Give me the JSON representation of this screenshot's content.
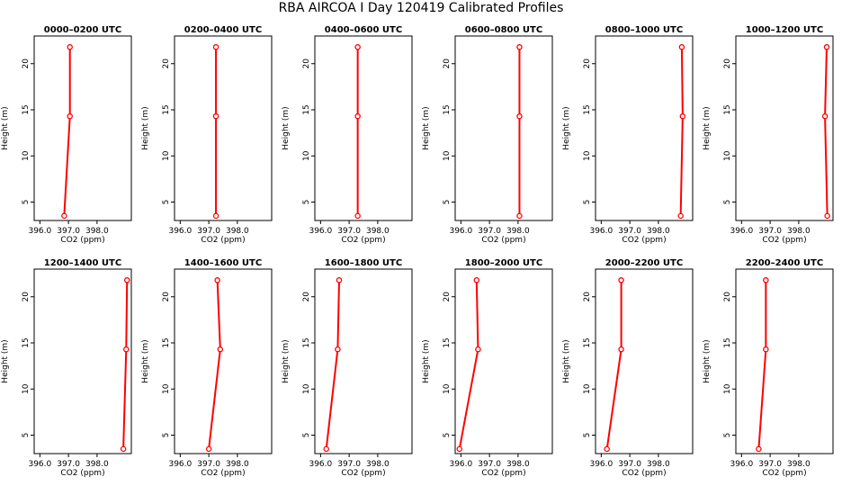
{
  "title": "RBA AIRCOA I  Day 120419  Calibrated Profiles",
  "chart_data": [
    {
      "type": "line",
      "title": "0000–0200 UTC",
      "xlabel": "CO2 (ppm)",
      "ylabel": "Height (m)",
      "xlim": [
        395.8,
        399.2
      ],
      "ylim": [
        3,
        23
      ],
      "xticks": [
        396,
        397,
        398
      ],
      "xtick_labels": [
        "396.0",
        "397.0",
        "398.0"
      ],
      "yticks": [
        5,
        10,
        15,
        20
      ],
      "grid": false,
      "series": [
        {
          "color": "#ff0000",
          "points": [
            {
              "x": 396.85,
              "y": 3.5
            },
            {
              "x": 397.05,
              "y": 14.3
            },
            {
              "x": 397.05,
              "y": 21.8
            }
          ]
        }
      ]
    },
    {
      "type": "line",
      "title": "0200–0400 UTC",
      "xlabel": "CO2 (ppm)",
      "ylabel": "Height (m)",
      "xlim": [
        395.8,
        399.2
      ],
      "ylim": [
        3,
        23
      ],
      "xticks": [
        396,
        397,
        398
      ],
      "xtick_labels": [
        "396.0",
        "397.0",
        "398.0"
      ],
      "yticks": [
        5,
        10,
        15,
        20
      ],
      "grid": false,
      "series": [
        {
          "color": "#ff0000",
          "points": [
            {
              "x": 397.25,
              "y": 3.5
            },
            {
              "x": 397.25,
              "y": 14.3
            },
            {
              "x": 397.25,
              "y": 21.8
            }
          ]
        }
      ]
    },
    {
      "type": "line",
      "title": "0400–0600 UTC",
      "xlabel": "CO2 (ppm)",
      "ylabel": "Height (m)",
      "xlim": [
        395.8,
        399.2
      ],
      "ylim": [
        3,
        23
      ],
      "xticks": [
        396,
        397,
        398
      ],
      "xtick_labels": [
        "396.0",
        "397.0",
        "398.0"
      ],
      "yticks": [
        5,
        10,
        15,
        20
      ],
      "grid": false,
      "series": [
        {
          "color": "#ff0000",
          "points": [
            {
              "x": 397.3,
              "y": 3.5
            },
            {
              "x": 397.3,
              "y": 14.3
            },
            {
              "x": 397.3,
              "y": 21.8
            }
          ]
        }
      ]
    },
    {
      "type": "line",
      "title": "0600–0800 UTC",
      "xlabel": "CO2 (ppm)",
      "ylabel": "Height (m)",
      "xlim": [
        395.8,
        399.2
      ],
      "ylim": [
        3,
        23
      ],
      "xticks": [
        396,
        397,
        398
      ],
      "xtick_labels": [
        "396.0",
        "397.0",
        "398.0"
      ],
      "yticks": [
        5,
        10,
        15,
        20
      ],
      "grid": false,
      "series": [
        {
          "color": "#ff0000",
          "points": [
            {
              "x": 398.05,
              "y": 3.5
            },
            {
              "x": 398.05,
              "y": 14.3
            },
            {
              "x": 398.05,
              "y": 21.8
            }
          ]
        }
      ]
    },
    {
      "type": "line",
      "title": "0800–1000 UTC",
      "xlabel": "CO2 (ppm)",
      "ylabel": "Height (m)",
      "xlim": [
        395.8,
        399.2
      ],
      "ylim": [
        3,
        23
      ],
      "xticks": [
        396,
        397,
        398
      ],
      "xtick_labels": [
        "396.0",
        "397.0",
        "398.0"
      ],
      "yticks": [
        5,
        10,
        15,
        20
      ],
      "grid": false,
      "series": [
        {
          "color": "#ff0000",
          "points": [
            {
              "x": 398.78,
              "y": 3.5
            },
            {
              "x": 398.85,
              "y": 14.3
            },
            {
              "x": 398.82,
              "y": 21.8
            }
          ]
        }
      ]
    },
    {
      "type": "line",
      "title": "1000–1200 UTC",
      "xlabel": "CO2 (ppm)",
      "ylabel": "Height (m)",
      "xlim": [
        395.8,
        399.2
      ],
      "ylim": [
        3,
        23
      ],
      "xticks": [
        396,
        397,
        398
      ],
      "xtick_labels": [
        "396.0",
        "397.0",
        "398.0"
      ],
      "yticks": [
        5,
        10,
        15,
        20
      ],
      "grid": false,
      "series": [
        {
          "color": "#ff0000",
          "points": [
            {
              "x": 399.0,
              "y": 3.5
            },
            {
              "x": 398.92,
              "y": 14.3
            },
            {
              "x": 398.98,
              "y": 21.8
            }
          ]
        }
      ]
    },
    {
      "type": "line",
      "title": "1200–1400 UTC",
      "xlabel": "CO2 (ppm)",
      "ylabel": "Height (m)",
      "xlim": [
        395.8,
        399.2
      ],
      "ylim": [
        3,
        23
      ],
      "xticks": [
        396,
        397,
        398
      ],
      "xtick_labels": [
        "396.0",
        "397.0",
        "398.0"
      ],
      "yticks": [
        5,
        10,
        15,
        20
      ],
      "grid": false,
      "series": [
        {
          "color": "#ff0000",
          "points": [
            {
              "x": 398.92,
              "y": 3.5
            },
            {
              "x": 399.02,
              "y": 14.3
            },
            {
              "x": 399.05,
              "y": 21.8
            }
          ]
        }
      ]
    },
    {
      "type": "line",
      "title": "1400–1600 UTC",
      "xlabel": "CO2 (ppm)",
      "ylabel": "Height (m)",
      "xlim": [
        395.8,
        399.2
      ],
      "ylim": [
        3,
        23
      ],
      "xticks": [
        396,
        397,
        398
      ],
      "xtick_labels": [
        "396.0",
        "397.0",
        "398.0"
      ],
      "yticks": [
        5,
        10,
        15,
        20
      ],
      "grid": false,
      "series": [
        {
          "color": "#ff0000",
          "points": [
            {
              "x": 397.0,
              "y": 3.5
            },
            {
              "x": 397.4,
              "y": 14.3
            },
            {
              "x": 397.3,
              "y": 21.8
            }
          ]
        }
      ]
    },
    {
      "type": "line",
      "title": "1600–1800 UTC",
      "xlabel": "CO2 (ppm)",
      "ylabel": "Height (m)",
      "xlim": [
        395.8,
        399.2
      ],
      "ylim": [
        3,
        23
      ],
      "xticks": [
        396,
        397,
        398
      ],
      "xtick_labels": [
        "396.0",
        "397.0",
        "398.0"
      ],
      "yticks": [
        5,
        10,
        15,
        20
      ],
      "grid": false,
      "series": [
        {
          "color": "#ff0000",
          "points": [
            {
              "x": 396.2,
              "y": 3.5
            },
            {
              "x": 396.6,
              "y": 14.3
            },
            {
              "x": 396.65,
              "y": 21.8
            }
          ]
        }
      ]
    },
    {
      "type": "line",
      "title": "1800–2000 UTC",
      "xlabel": "CO2 (ppm)",
      "ylabel": "Height (m)",
      "xlim": [
        395.8,
        399.2
      ],
      "ylim": [
        3,
        23
      ],
      "xticks": [
        396,
        397,
        398
      ],
      "xtick_labels": [
        "396.0",
        "397.0",
        "398.0"
      ],
      "yticks": [
        5,
        10,
        15,
        20
      ],
      "grid": false,
      "series": [
        {
          "color": "#ff0000",
          "points": [
            {
              "x": 395.95,
              "y": 3.5
            },
            {
              "x": 396.6,
              "y": 14.3
            },
            {
              "x": 396.55,
              "y": 21.8
            }
          ]
        }
      ]
    },
    {
      "type": "line",
      "title": "2000–2200 UTC",
      "xlabel": "CO2 (ppm)",
      "ylabel": "Height (m)",
      "xlim": [
        395.8,
        399.2
      ],
      "ylim": [
        3,
        23
      ],
      "xticks": [
        396,
        397,
        398
      ],
      "xtick_labels": [
        "396.0",
        "397.0",
        "398.0"
      ],
      "yticks": [
        5,
        10,
        15,
        20
      ],
      "grid": false,
      "series": [
        {
          "color": "#ff0000",
          "points": [
            {
              "x": 396.2,
              "y": 3.5
            },
            {
              "x": 396.7,
              "y": 14.3
            },
            {
              "x": 396.7,
              "y": 21.8
            }
          ]
        }
      ]
    },
    {
      "type": "line",
      "title": "2200–2400 UTC",
      "xlabel": "CO2 (ppm)",
      "ylabel": "Height (m)",
      "xlim": [
        395.8,
        399.2
      ],
      "ylim": [
        3,
        23
      ],
      "xticks": [
        396,
        397,
        398
      ],
      "xtick_labels": [
        "396.0",
        "397.0",
        "398.0"
      ],
      "yticks": [
        5,
        10,
        15,
        20
      ],
      "grid": false,
      "series": [
        {
          "color": "#ff0000",
          "points": [
            {
              "x": 396.6,
              "y": 3.5
            },
            {
              "x": 396.85,
              "y": 14.3
            },
            {
              "x": 396.85,
              "y": 21.8
            }
          ]
        }
      ]
    }
  ]
}
